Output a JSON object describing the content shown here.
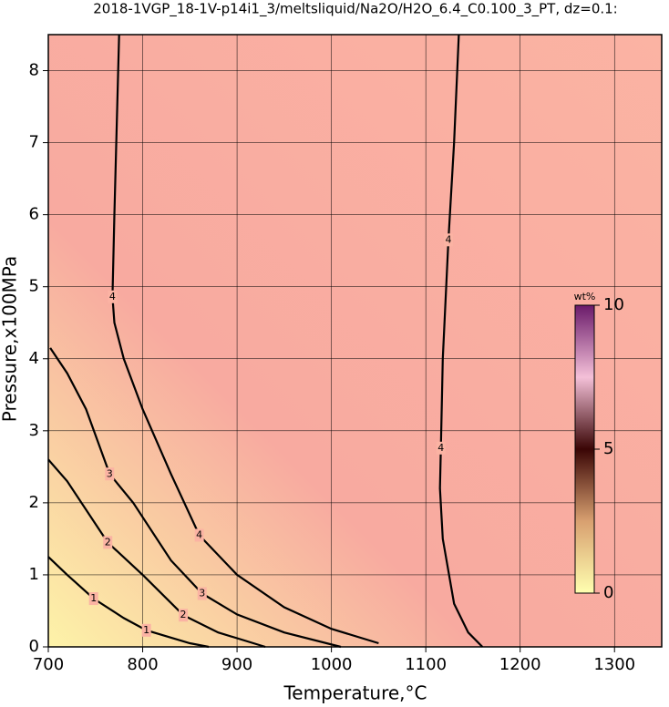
{
  "chart_data": {
    "type": "contour",
    "title": "2018-1VGP_18-1V-p14i1_3/meltsliquid/Na2O/H2O_6.4_C0.100_3_PT, dz=0.1:",
    "xlabel": "Temperature,°C",
    "ylabel": "Pressure,x100MPa",
    "xlim": [
      700,
      1350
    ],
    "ylim": [
      0,
      8.5
    ],
    "xticks": [
      700,
      800,
      900,
      1000,
      1100,
      1200,
      1300
    ],
    "yticks": [
      0,
      1,
      2,
      3,
      4,
      5,
      6,
      7,
      8
    ],
    "grid": true,
    "colorbar": {
      "title": "wt%",
      "lim": [
        0,
        10
      ],
      "ticks": [
        0,
        5,
        10
      ]
    },
    "contours": [
      {
        "level": 1,
        "x": [
          700,
          720,
          748,
          780,
          804,
          850,
          870
        ],
        "y": [
          1.25,
          1.0,
          0.67,
          0.4,
          0.23,
          0.05,
          0
        ]
      },
      {
        "level": 2,
        "x": [
          700,
          720,
          763,
          800,
          843,
          880,
          930
        ],
        "y": [
          2.6,
          2.3,
          1.45,
          1.0,
          0.44,
          0.2,
          0
        ]
      },
      {
        "level": 3,
        "x": [
          702,
          720,
          740,
          765,
          790,
          830,
          863,
          900,
          950,
          1010
        ],
        "y": [
          4.15,
          3.8,
          3.3,
          2.4,
          2.0,
          1.2,
          0.74,
          0.45,
          0.2,
          0
        ]
      },
      {
        "level": 4,
        "x": [
          775,
          770,
          768,
          770,
          780,
          800,
          830,
          860,
          900,
          950,
          1000,
          1050
        ],
        "y": [
          8.5,
          6.0,
          4.86,
          4.5,
          4.0,
          3.3,
          2.4,
          1.55,
          1.0,
          0.55,
          0.25,
          0.05
        ]
      },
      {
        "level": 4,
        "x": [
          1135,
          1130,
          1124,
          1118,
          1116,
          1115,
          1118,
          1130,
          1145,
          1160
        ],
        "y": [
          8.5,
          7.0,
          5.65,
          4.0,
          2.76,
          2.2,
          1.5,
          0.6,
          0.2,
          0
        ]
      }
    ]
  }
}
